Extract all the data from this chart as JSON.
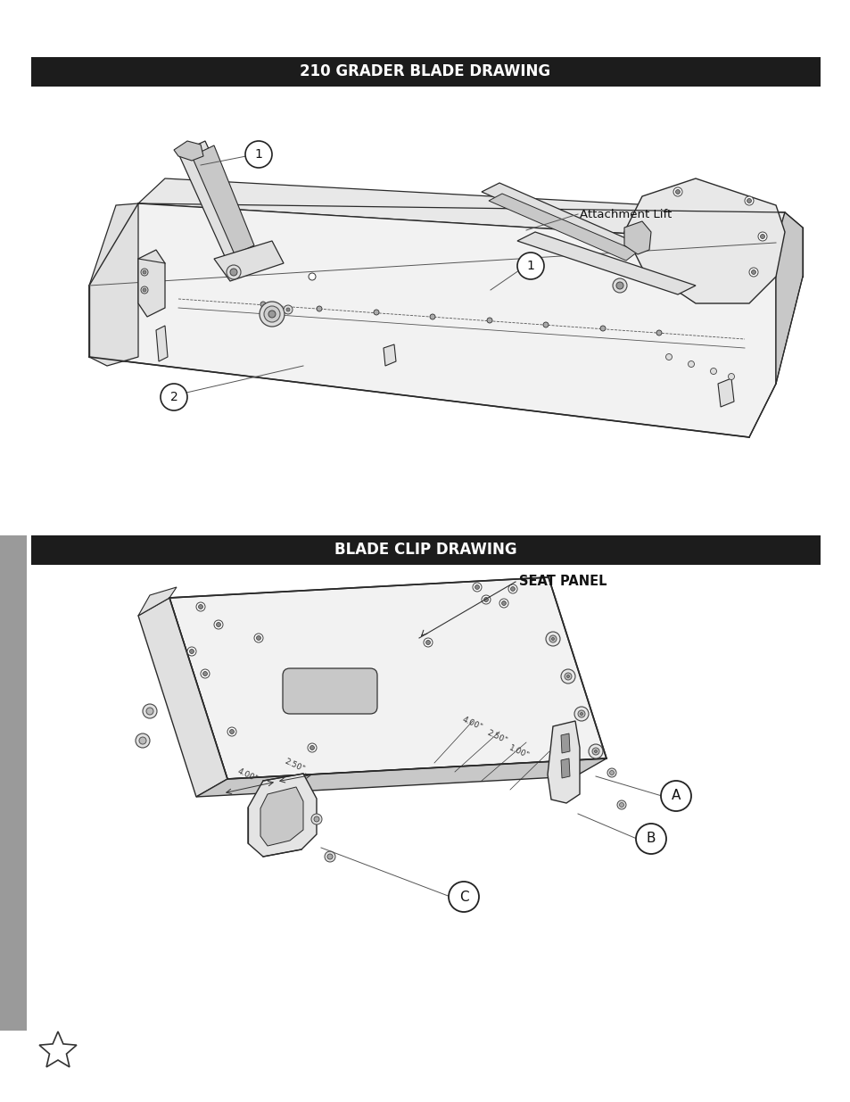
{
  "bg_color": "#ffffff",
  "header1_color": "#1c1c1c",
  "header1_text": "210 GRADER BLADE DRAWING",
  "header2_text": "BLADE CLIP DRAWING",
  "header_text_color": "#ffffff",
  "header_fontsize": 12,
  "attachment_lift_label": "Attachment Lift",
  "seat_panel_label": "SEAT PANEL",
  "dim1": "4.00\"",
  "dim2": "2.50\"",
  "dim3": "1.00\"",
  "dim4": "4.00\"",
  "dim5": "2.50\"",
  "sidebar_color": "#9a9a9a",
  "line_color": "#2a2a2a",
  "fill_light": "#f2f2f2",
  "fill_mid": "#e0e0e0",
  "fill_dark": "#c8c8c8",
  "fill_darker": "#b0b0b0"
}
